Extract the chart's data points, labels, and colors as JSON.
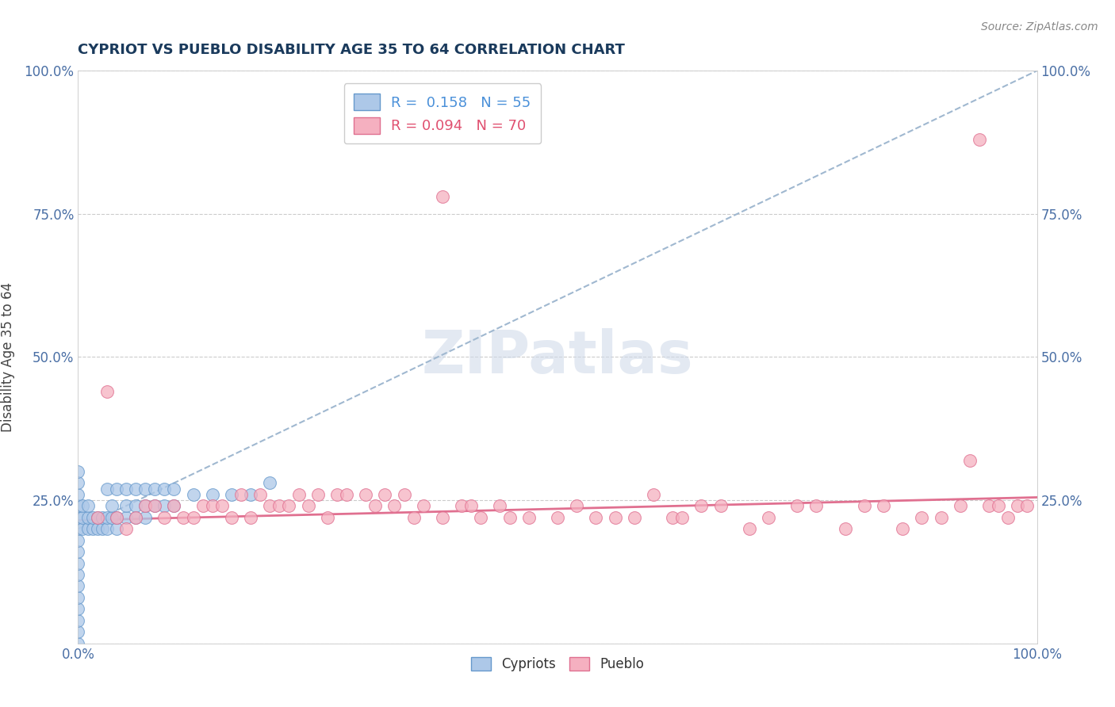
{
  "title": "CYPRIOT VS PUEBLO DISABILITY AGE 35 TO 64 CORRELATION CHART",
  "source": "Source: ZipAtlas.com",
  "ylabel_label": "Disability Age 35 to 64",
  "cypriot_R": 0.158,
  "cypriot_N": 55,
  "pueblo_R": 0.094,
  "pueblo_N": 70,
  "cypriot_color": "#adc8e8",
  "pueblo_color": "#f5b0c0",
  "cypriot_edge_color": "#6699cc",
  "pueblo_edge_color": "#e07090",
  "trendline_cypriot_color": "#a0b8d0",
  "trendline_pueblo_color": "#e07090",
  "watermark": "ZIPatlas",
  "trendline_cypriot": [
    0.0,
    0.2,
    1.0,
    1.0
  ],
  "trendline_pueblo": [
    0.0,
    0.215,
    1.0,
    0.255
  ],
  "cypriot_points": [
    [
      0.0,
      0.0
    ],
    [
      0.0,
      0.02
    ],
    [
      0.0,
      0.04
    ],
    [
      0.0,
      0.06
    ],
    [
      0.0,
      0.08
    ],
    [
      0.0,
      0.1
    ],
    [
      0.0,
      0.12
    ],
    [
      0.0,
      0.14
    ],
    [
      0.0,
      0.16
    ],
    [
      0.0,
      0.18
    ],
    [
      0.0,
      0.2
    ],
    [
      0.0,
      0.22
    ],
    [
      0.0,
      0.24
    ],
    [
      0.0,
      0.26
    ],
    [
      0.0,
      0.28
    ],
    [
      0.0,
      0.3
    ],
    [
      0.005,
      0.2
    ],
    [
      0.005,
      0.22
    ],
    [
      0.005,
      0.24
    ],
    [
      0.01,
      0.2
    ],
    [
      0.01,
      0.22
    ],
    [
      0.01,
      0.24
    ],
    [
      0.015,
      0.2
    ],
    [
      0.015,
      0.22
    ],
    [
      0.02,
      0.2
    ],
    [
      0.02,
      0.22
    ],
    [
      0.025,
      0.2
    ],
    [
      0.025,
      0.22
    ],
    [
      0.03,
      0.2
    ],
    [
      0.03,
      0.22
    ],
    [
      0.035,
      0.22
    ],
    [
      0.035,
      0.24
    ],
    [
      0.04,
      0.2
    ],
    [
      0.04,
      0.22
    ],
    [
      0.05,
      0.22
    ],
    [
      0.05,
      0.24
    ],
    [
      0.06,
      0.22
    ],
    [
      0.06,
      0.24
    ],
    [
      0.07,
      0.22
    ],
    [
      0.07,
      0.24
    ],
    [
      0.08,
      0.24
    ],
    [
      0.09,
      0.24
    ],
    [
      0.1,
      0.24
    ],
    [
      0.12,
      0.26
    ],
    [
      0.14,
      0.26
    ],
    [
      0.16,
      0.26
    ],
    [
      0.18,
      0.26
    ],
    [
      0.2,
      0.28
    ],
    [
      0.03,
      0.27
    ],
    [
      0.04,
      0.27
    ],
    [
      0.05,
      0.27
    ],
    [
      0.06,
      0.27
    ],
    [
      0.07,
      0.27
    ],
    [
      0.08,
      0.27
    ],
    [
      0.09,
      0.27
    ],
    [
      0.1,
      0.27
    ]
  ],
  "pueblo_points": [
    [
      0.02,
      0.22
    ],
    [
      0.03,
      0.44
    ],
    [
      0.04,
      0.22
    ],
    [
      0.05,
      0.2
    ],
    [
      0.06,
      0.22
    ],
    [
      0.07,
      0.24
    ],
    [
      0.08,
      0.24
    ],
    [
      0.09,
      0.22
    ],
    [
      0.1,
      0.24
    ],
    [
      0.11,
      0.22
    ],
    [
      0.12,
      0.22
    ],
    [
      0.13,
      0.24
    ],
    [
      0.14,
      0.24
    ],
    [
      0.15,
      0.24
    ],
    [
      0.16,
      0.22
    ],
    [
      0.17,
      0.26
    ],
    [
      0.18,
      0.22
    ],
    [
      0.19,
      0.26
    ],
    [
      0.2,
      0.24
    ],
    [
      0.21,
      0.24
    ],
    [
      0.22,
      0.24
    ],
    [
      0.23,
      0.26
    ],
    [
      0.24,
      0.24
    ],
    [
      0.25,
      0.26
    ],
    [
      0.26,
      0.22
    ],
    [
      0.27,
      0.26
    ],
    [
      0.28,
      0.26
    ],
    [
      0.3,
      0.26
    ],
    [
      0.31,
      0.24
    ],
    [
      0.32,
      0.26
    ],
    [
      0.33,
      0.24
    ],
    [
      0.34,
      0.26
    ],
    [
      0.35,
      0.22
    ],
    [
      0.36,
      0.24
    ],
    [
      0.38,
      0.22
    ],
    [
      0.4,
      0.24
    ],
    [
      0.41,
      0.24
    ],
    [
      0.42,
      0.22
    ],
    [
      0.44,
      0.24
    ],
    [
      0.45,
      0.22
    ],
    [
      0.47,
      0.22
    ],
    [
      0.5,
      0.22
    ],
    [
      0.52,
      0.24
    ],
    [
      0.54,
      0.22
    ],
    [
      0.56,
      0.22
    ],
    [
      0.58,
      0.22
    ],
    [
      0.6,
      0.26
    ],
    [
      0.62,
      0.22
    ],
    [
      0.63,
      0.22
    ],
    [
      0.65,
      0.24
    ],
    [
      0.67,
      0.24
    ],
    [
      0.7,
      0.2
    ],
    [
      0.72,
      0.22
    ],
    [
      0.75,
      0.24
    ],
    [
      0.77,
      0.24
    ],
    [
      0.8,
      0.2
    ],
    [
      0.82,
      0.24
    ],
    [
      0.84,
      0.24
    ],
    [
      0.86,
      0.2
    ],
    [
      0.88,
      0.22
    ],
    [
      0.9,
      0.22
    ],
    [
      0.92,
      0.24
    ],
    [
      0.93,
      0.32
    ],
    [
      0.95,
      0.24
    ],
    [
      0.96,
      0.24
    ],
    [
      0.97,
      0.22
    ],
    [
      0.98,
      0.24
    ],
    [
      0.99,
      0.24
    ],
    [
      0.38,
      0.78
    ],
    [
      0.94,
      0.88
    ]
  ]
}
